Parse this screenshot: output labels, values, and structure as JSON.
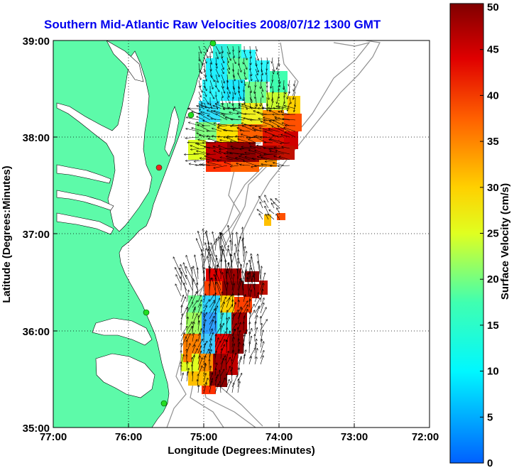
{
  "title": "Southern Mid-Atlantic Raw Velocities 2008/07/12 1300 GMT",
  "xlabel": "Longitude (Degrees:Minutes)",
  "ylabel": "Latitude (Degrees:Minutes)",
  "colorbar_label": "Surface Velocity (cm/s)",
  "x_ticks": [
    "77:00",
    "76:00",
    "75:00",
    "74:00",
    "73:00",
    "72:00"
  ],
  "y_ticks": [
    "39:00",
    "38:00",
    "37:00",
    "36:00",
    "35:00"
  ],
  "colorbar_ticks": [
    "0",
    "5",
    "10",
    "15",
    "20",
    "25",
    "30",
    "35",
    "40",
    "45",
    "50"
  ],
  "colors": {
    "land": "#5dfaa9",
    "title": "#0000ee",
    "contour": "#909090"
  },
  "chart_data": {
    "type": "heatmap",
    "title": "Southern Mid-Atlantic Raw Velocities 2008/07/12 1300 GMT",
    "xlabel": "Longitude (Degrees:Minutes)",
    "ylabel": "Latitude (Degrees:Minutes)",
    "xlim": [
      -77,
      -72
    ],
    "ylim": [
      35,
      39
    ],
    "colorbar": {
      "label": "Surface Velocity (cm/s)",
      "range": [
        0,
        50
      ]
    },
    "grid": true
  }
}
